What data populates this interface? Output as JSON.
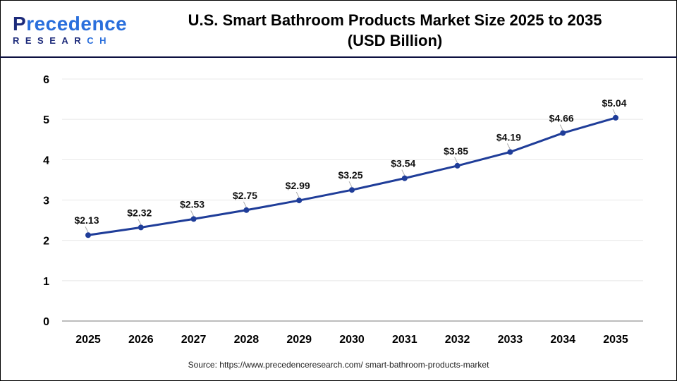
{
  "header": {
    "logo_text": "Precedence RESEARCH",
    "title_line1": "U.S. Smart Bathroom Products Market Size 2025 to 2035",
    "title_line2": "(USD Billion)"
  },
  "source": "Source: https://www.precedenceresearch.com/ smart-bathroom-products-market",
  "colors": {
    "line": "#1f3d99",
    "grid": "#e8e8e8",
    "axis": "#bdbdbd"
  },
  "chart_data": {
    "type": "line",
    "title": "U.S. Smart Bathroom Products Market Size 2025 to 2035 (USD Billion)",
    "categories": [
      "2025",
      "2026",
      "2027",
      "2028",
      "2029",
      "2030",
      "2031",
      "2032",
      "2033",
      "2034",
      "2035"
    ],
    "values": [
      2.13,
      2.32,
      2.53,
      2.75,
      2.99,
      3.25,
      3.54,
      3.85,
      4.19,
      4.66,
      5.04
    ],
    "labels": [
      "$2.13",
      "$2.32",
      "$2.53",
      "$2.75",
      "$2.99",
      "$3.25",
      "$3.54",
      "$3.85",
      "$4.19",
      "$4.66",
      "$5.04"
    ],
    "yticks": [
      "0",
      "1",
      "2",
      "3",
      "4",
      "5",
      "6"
    ],
    "ylim": [
      0,
      6
    ],
    "grid": true,
    "legend": "none"
  }
}
